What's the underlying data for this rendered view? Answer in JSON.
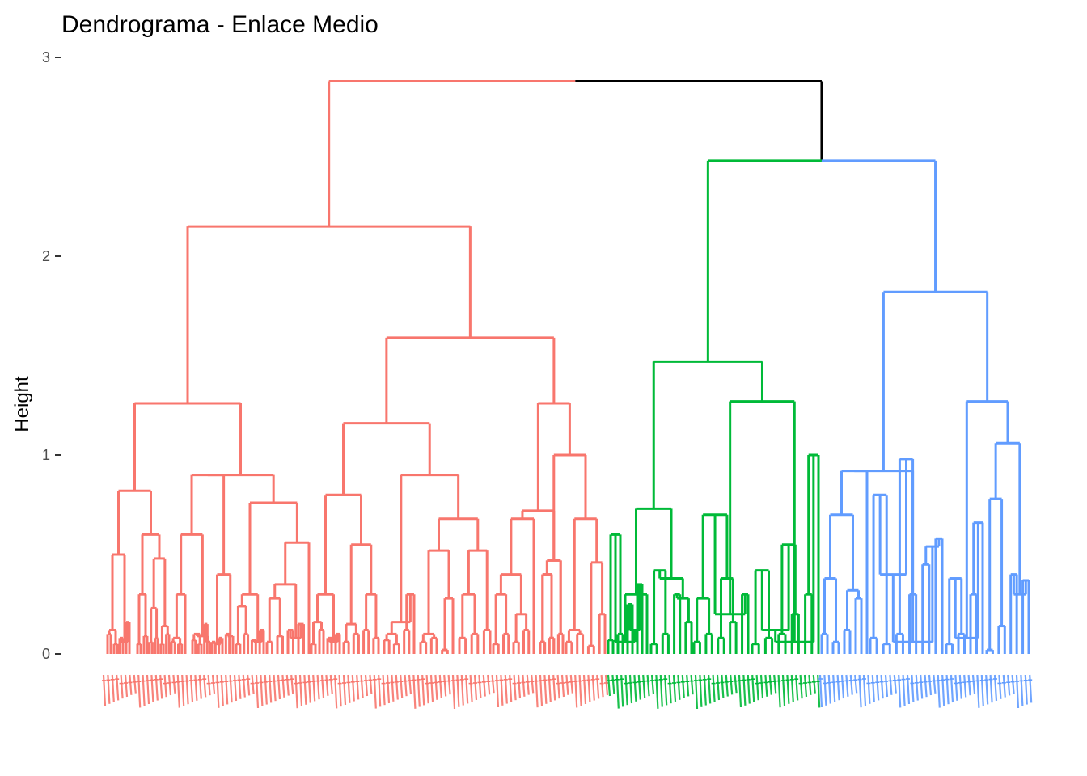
{
  "chart_data": {
    "type": "dendrogram",
    "title": "Dendrograma - Enlace Medio",
    "ylabel": "Height",
    "xlabel": "",
    "ylim": [
      0,
      3
    ],
    "y_ticks": [
      "0",
      "1",
      "2",
      "3"
    ],
    "grid": false,
    "legend": "none",
    "cluster_colors": [
      "#F8766D",
      "#00BA38",
      "#619CFF"
    ],
    "root_color": "#000000",
    "cluster_leaf_counts": [
      115,
      49,
      48
    ],
    "merges": [
      {
        "label": "root",
        "height": 2.88,
        "children": [
          "cluster1",
          "cluster23"
        ]
      },
      {
        "label": "cluster23",
        "height": 2.48,
        "children": [
          "cluster2",
          "cluster3"
        ]
      },
      {
        "label": "cluster1",
        "height": 2.15,
        "children": [
          "c1a",
          "c1b"
        ]
      },
      {
        "label": "c1b",
        "height": 1.59
      },
      {
        "label": "c1a",
        "height": 1.26
      },
      {
        "label": "cluster2",
        "height": 1.47
      },
      {
        "label": "cluster3",
        "height": 1.82
      }
    ]
  }
}
